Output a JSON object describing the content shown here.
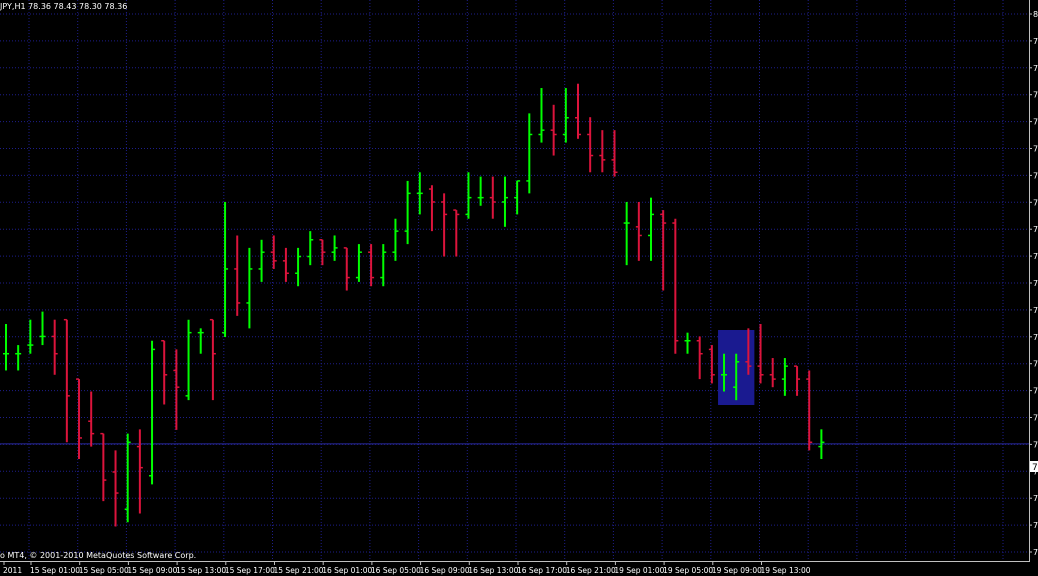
{
  "header": {
    "symbol_label": "JPY,H1",
    "ohlc_text": "78.36 78.43 78.30 78.36"
  },
  "footer": {
    "copyright": "o MT4, © 2001-2010 MetaQuotes Software Corp."
  },
  "colors": {
    "background": "#000000",
    "grid": "#1e1e8a",
    "bull": "#00ff00",
    "bear": "#dc143c",
    "axis": "#c0c0c0",
    "current_line": "#2a2aa0",
    "highlight": "#1a1a90"
  },
  "price_axis": {
    "tick_labels": [
      "8",
      "7",
      "7",
      "7",
      "7",
      "7",
      "7",
      "7",
      "7",
      "7",
      "7",
      "7",
      "7",
      "7",
      "7",
      "7",
      "7",
      "7",
      "7",
      "7",
      "7",
      "7"
    ],
    "current_price_label": "7"
  },
  "time_axis": {
    "labels": [
      "2011",
      "15 Sep 01:00",
      "15 Sep 05:00",
      "15 Sep 09:00",
      "15 Sep 13:00",
      "15 Sep 17:00",
      "15 Sep 21:00",
      "16 Sep 01:00",
      "16 Sep 05:00",
      "16 Sep 09:00",
      "16 Sep 13:00",
      "16 Sep 17:00",
      "16 Sep 21:00",
      "19 Sep 01:00",
      "19 Sep 05:00",
      "19 Sep 09:00",
      "19 Sep 13:00"
    ]
  },
  "chart_data": {
    "type": "bar",
    "style": "ohlc-bars",
    "timeframe": "H1",
    "y_unit": "price index (0 = chart bottom, 1 = chart top)",
    "current_price_level": 0.215,
    "highlight_range": {
      "start_bar": 59,
      "end_bar": 61
    },
    "bars": [
      {
        "o": 0.382,
        "h": 0.437,
        "l": 0.351,
        "c": 0.382
      },
      {
        "o": 0.382,
        "h": 0.398,
        "l": 0.351,
        "c": 0.382
      },
      {
        "o": 0.398,
        "h": 0.445,
        "l": 0.382,
        "c": 0.398
      },
      {
        "o": 0.414,
        "h": 0.46,
        "l": 0.398,
        "c": 0.414
      },
      {
        "o": 0.414,
        "h": 0.445,
        "l": 0.343,
        "c": 0.382
      },
      {
        "o": 0.445,
        "h": 0.445,
        "l": 0.218,
        "c": 0.304
      },
      {
        "o": 0.335,
        "h": 0.335,
        "l": 0.187,
        "c": 0.226
      },
      {
        "o": 0.257,
        "h": 0.312,
        "l": 0.21,
        "c": 0.234
      },
      {
        "o": 0.234,
        "h": 0.234,
        "l": 0.109,
        "c": 0.148
      },
      {
        "o": 0.163,
        "h": 0.203,
        "l": 0.062,
        "c": 0.124
      },
      {
        "o": 0.094,
        "h": 0.234,
        "l": 0.07,
        "c": 0.218
      },
      {
        "o": 0.21,
        "h": 0.242,
        "l": 0.086,
        "c": 0.171
      },
      {
        "o": 0.156,
        "h": 0.406,
        "l": 0.14,
        "c": 0.39
      },
      {
        "o": 0.406,
        "h": 0.406,
        "l": 0.288,
        "c": 0.343
      },
      {
        "o": 0.351,
        "h": 0.39,
        "l": 0.241,
        "c": 0.32
      },
      {
        "o": 0.304,
        "h": 0.445,
        "l": 0.296,
        "c": 0.421
      },
      {
        "o": 0.421,
        "h": 0.429,
        "l": 0.382,
        "c": 0.421
      },
      {
        "o": 0.445,
        "h": 0.445,
        "l": 0.296,
        "c": 0.382
      },
      {
        "o": 0.421,
        "h": 0.663,
        "l": 0.413,
        "c": 0.539
      },
      {
        "o": 0.539,
        "h": 0.601,
        "l": 0.452,
        "c": 0.476
      },
      {
        "o": 0.476,
        "h": 0.578,
        "l": 0.429,
        "c": 0.539
      },
      {
        "o": 0.539,
        "h": 0.593,
        "l": 0.515,
        "c": 0.57
      },
      {
        "o": 0.57,
        "h": 0.601,
        "l": 0.539,
        "c": 0.554
      },
      {
        "o": 0.554,
        "h": 0.578,
        "l": 0.515,
        "c": 0.531
      },
      {
        "o": 0.531,
        "h": 0.578,
        "l": 0.507,
        "c": 0.562
      },
      {
        "o": 0.562,
        "h": 0.609,
        "l": 0.546,
        "c": 0.593
      },
      {
        "o": 0.593,
        "h": 0.593,
        "l": 0.546,
        "c": 0.57
      },
      {
        "o": 0.57,
        "h": 0.601,
        "l": 0.554,
        "c": 0.578
      },
      {
        "o": 0.578,
        "h": 0.578,
        "l": 0.499,
        "c": 0.523
      },
      {
        "o": 0.523,
        "h": 0.585,
        "l": 0.515,
        "c": 0.57
      },
      {
        "o": 0.57,
        "h": 0.585,
        "l": 0.507,
        "c": 0.523
      },
      {
        "o": 0.523,
        "h": 0.585,
        "l": 0.507,
        "c": 0.57
      },
      {
        "o": 0.57,
        "h": 0.632,
        "l": 0.554,
        "c": 0.609
      },
      {
        "o": 0.609,
        "h": 0.702,
        "l": 0.585,
        "c": 0.679
      },
      {
        "o": 0.679,
        "h": 0.718,
        "l": 0.64,
        "c": 0.679
      },
      {
        "o": 0.687,
        "h": 0.694,
        "l": 0.609,
        "c": 0.663
      },
      {
        "o": 0.663,
        "h": 0.679,
        "l": 0.562,
        "c": 0.64
      },
      {
        "o": 0.648,
        "h": 0.648,
        "l": 0.562,
        "c": 0.64
      },
      {
        "o": 0.64,
        "h": 0.718,
        "l": 0.632,
        "c": 0.671
      },
      {
        "o": 0.671,
        "h": 0.71,
        "l": 0.656,
        "c": 0.671
      },
      {
        "o": 0.671,
        "h": 0.71,
        "l": 0.632,
        "c": 0.663
      },
      {
        "o": 0.663,
        "h": 0.71,
        "l": 0.617,
        "c": 0.671
      },
      {
        "o": 0.671,
        "h": 0.702,
        "l": 0.64,
        "c": 0.702
      },
      {
        "o": 0.702,
        "h": 0.827,
        "l": 0.679,
        "c": 0.788
      },
      {
        "o": 0.788,
        "h": 0.874,
        "l": 0.773,
        "c": 0.796
      },
      {
        "o": 0.796,
        "h": 0.843,
        "l": 0.749,
        "c": 0.788
      },
      {
        "o": 0.788,
        "h": 0.874,
        "l": 0.773,
        "c": 0.819
      },
      {
        "o": 0.819,
        "h": 0.882,
        "l": 0.78,
        "c": 0.788
      },
      {
        "o": 0.788,
        "h": 0.82,
        "l": 0.718,
        "c": 0.749
      },
      {
        "o": 0.749,
        "h": 0.796,
        "l": 0.718,
        "c": 0.741
      },
      {
        "o": 0.741,
        "h": 0.796,
        "l": 0.71,
        "c": 0.718
      },
      {
        "o": 0.624,
        "h": 0.663,
        "l": 0.546,
        "c": 0.624
      },
      {
        "o": 0.617,
        "h": 0.663,
        "l": 0.554,
        "c": 0.601
      },
      {
        "o": 0.601,
        "h": 0.671,
        "l": 0.554,
        "c": 0.64
      },
      {
        "o": 0.64,
        "h": 0.648,
        "l": 0.499,
        "c": 0.624
      },
      {
        "o": 0.624,
        "h": 0.632,
        "l": 0.382,
        "c": 0.406
      },
      {
        "o": 0.406,
        "h": 0.421,
        "l": 0.382,
        "c": 0.406
      },
      {
        "o": 0.406,
        "h": 0.414,
        "l": 0.335,
        "c": 0.382
      },
      {
        "o": 0.39,
        "h": 0.398,
        "l": 0.327,
        "c": 0.343
      },
      {
        "o": 0.343,
        "h": 0.382,
        "l": 0.312,
        "c": 0.343
      },
      {
        "o": 0.32,
        "h": 0.382,
        "l": 0.296,
        "c": 0.367
      },
      {
        "o": 0.367,
        "h": 0.429,
        "l": 0.343,
        "c": 0.359
      },
      {
        "o": 0.359,
        "h": 0.437,
        "l": 0.327,
        "c": 0.343
      },
      {
        "o": 0.343,
        "h": 0.374,
        "l": 0.32,
        "c": 0.335
      },
      {
        "o": 0.335,
        "h": 0.374,
        "l": 0.304,
        "c": 0.359
      },
      {
        "o": 0.359,
        "h": 0.359,
        "l": 0.304,
        "c": 0.335
      },
      {
        "o": 0.335,
        "h": 0.351,
        "l": 0.203,
        "c": 0.218
      },
      {
        "o": 0.21,
        "h": 0.242,
        "l": 0.187,
        "c": 0.218
      }
    ]
  }
}
